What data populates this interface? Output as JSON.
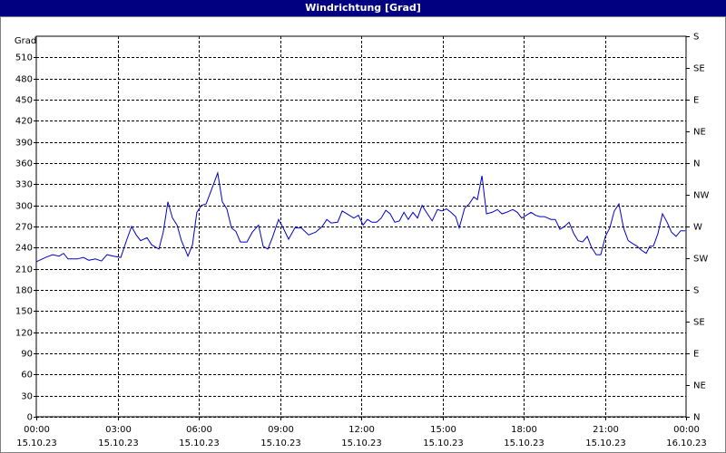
{
  "chart_data": {
    "type": "line",
    "title": "Windrichtung [Grad]",
    "y_label": "Grad",
    "xlim": [
      0,
      24
    ],
    "ylim": [
      0,
      540
    ],
    "y2lim": [
      0,
      540
    ],
    "grid": true,
    "xticks": [
      {
        "value": 0,
        "label": "00:00",
        "date": "15.10.23"
      },
      {
        "value": 3,
        "label": "03:00",
        "date": "15.10.23"
      },
      {
        "value": 6,
        "label": "06:00",
        "date": "15.10.23"
      },
      {
        "value": 9,
        "label": "09:00",
        "date": "15.10.23"
      },
      {
        "value": 12,
        "label": "12:00",
        "date": "15.10.23"
      },
      {
        "value": 15,
        "label": "15:00",
        "date": "15.10.23"
      },
      {
        "value": 18,
        "label": "18:00",
        "date": "15.10.23"
      },
      {
        "value": 21,
        "label": "21:00",
        "date": "15.10.23"
      },
      {
        "value": 24,
        "label": "00:00",
        "date": "16.10.23"
      }
    ],
    "yticks": [
      0,
      30,
      60,
      90,
      120,
      150,
      180,
      210,
      240,
      270,
      300,
      330,
      360,
      390,
      420,
      450,
      480,
      510
    ],
    "y2ticks": [
      {
        "value": 0,
        "label": "N"
      },
      {
        "value": 45,
        "label": "NE"
      },
      {
        "value": 90,
        "label": "E"
      },
      {
        "value": 135,
        "label": "SE"
      },
      {
        "value": 180,
        "label": "S"
      },
      {
        "value": 225,
        "label": "SW"
      },
      {
        "value": 270,
        "label": "W"
      },
      {
        "value": 315,
        "label": "NW"
      },
      {
        "value": 360,
        "label": "N"
      },
      {
        "value": 405,
        "label": "NE"
      },
      {
        "value": 450,
        "label": "E"
      },
      {
        "value": 495,
        "label": "SE"
      },
      {
        "value": 540,
        "label": "S"
      }
    ],
    "series": [
      {
        "color": "#0000cc",
        "x": [
          0,
          0.34,
          0.6,
          0.84,
          1.01,
          1.17,
          1.51,
          1.74,
          1.94,
          2.18,
          2.41,
          2.61,
          2.85,
          3.12,
          3.35,
          3.52,
          3.69,
          3.85,
          4.09,
          4.26,
          4.53,
          4.69,
          4.86,
          5.03,
          5.2,
          5.36,
          5.6,
          5.77,
          5.93,
          6.1,
          6.27,
          6.47,
          6.7,
          6.87,
          7.04,
          7.21,
          7.37,
          7.54,
          7.78,
          7.98,
          8.21,
          8.38,
          8.55,
          8.72,
          8.95,
          9.12,
          9.32,
          9.55,
          9.79,
          10.06,
          10.32,
          10.56,
          10.73,
          10.89,
          11.13,
          11.3,
          11.56,
          11.73,
          11.9,
          12.07,
          12.23,
          12.4,
          12.57,
          12.74,
          12.91,
          13.07,
          13.24,
          13.41,
          13.58,
          13.74,
          13.91,
          14.08,
          14.25,
          14.41,
          14.62,
          14.82,
          14.98,
          15.15,
          15.32,
          15.49,
          15.62,
          15.82,
          15.99,
          16.16,
          16.29,
          16.46,
          16.63,
          16.83,
          17.03,
          17.2,
          17.36,
          17.6,
          17.77,
          17.93,
          18.1,
          18.27,
          18.44,
          18.6,
          18.77,
          19.01,
          19.17,
          19.34,
          19.51,
          19.68,
          19.85,
          20.01,
          20.18,
          20.35,
          20.51,
          20.68,
          20.85,
          21.02,
          21.18,
          21.35,
          21.52,
          21.69,
          21.86,
          22.02,
          22.19,
          22.36,
          22.53,
          22.66,
          22.79,
          22.96,
          23.13,
          23.3,
          23.46,
          23.63,
          23.8,
          23.97
        ],
        "values": [
          220,
          226,
          230,
          228,
          232,
          224,
          224,
          226,
          222,
          224,
          221,
          230,
          228,
          226,
          252,
          270,
          258,
          250,
          254,
          244,
          238,
          262,
          305,
          282,
          272,
          250,
          228,
          244,
          290,
          300,
          302,
          322,
          346,
          305,
          295,
          268,
          263,
          248,
          248,
          262,
          272,
          242,
          238,
          254,
          280,
          268,
          252,
          268,
          268,
          258,
          262,
          270,
          280,
          275,
          276,
          292,
          286,
          282,
          286,
          272,
          280,
          276,
          276,
          282,
          293,
          288,
          276,
          278,
          290,
          280,
          290,
          282,
          300,
          290,
          278,
          294,
          292,
          295,
          290,
          284,
          268,
          296,
          302,
          312,
          308,
          342,
          288,
          290,
          294,
          288,
          290,
          294,
          290,
          282,
          286,
          290,
          286,
          284,
          284,
          280,
          280,
          266,
          270,
          276,
          260,
          250,
          248,
          256,
          240,
          230,
          230,
          256,
          268,
          292,
          302,
          268,
          250,
          246,
          242,
          236,
          232,
          242,
          242,
          260,
          288,
          276,
          262,
          256,
          264,
          264
        ]
      }
    ]
  }
}
